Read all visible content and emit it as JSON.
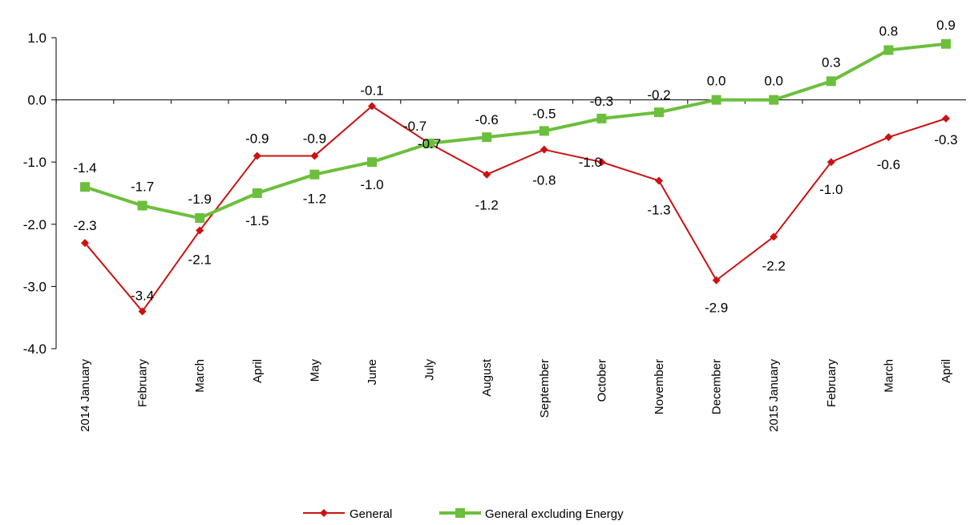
{
  "chart_data": {
    "type": "line",
    "title": "",
    "xlabel": "",
    "ylabel": "",
    "ylim": [
      -4.0,
      1.0
    ],
    "yticks": [
      "1.0",
      "0.0",
      "-1.0",
      "-2.0",
      "-3.0",
      "-4.0"
    ],
    "grid": false,
    "legend_position": "bottom-center",
    "categories": [
      "2014 January",
      "February",
      "March",
      "April",
      "May",
      "June",
      "July",
      "August",
      "September",
      "October",
      "November",
      "December",
      "2015 January",
      "February",
      "March",
      "April"
    ],
    "series": [
      {
        "name": "General",
        "color": "#cc1111",
        "marker": "diamond",
        "values": [
          -2.3,
          -3.4,
          -2.1,
          -0.9,
          -0.9,
          -0.1,
          -0.7,
          -1.2,
          -0.8,
          -1.0,
          -1.3,
          -2.9,
          -2.2,
          -1.0,
          -0.6,
          -0.3
        ],
        "labels": [
          "-2.3",
          "-3.4",
          "-2.1",
          "-0.9",
          "-0.9",
          "-0.1",
          "-0.7",
          "-1.2",
          "-0.8",
          "-1.0",
          "-1.3",
          "-2.9",
          "-2.2",
          "-1.0",
          "-0.6",
          "-0.3"
        ]
      },
      {
        "name": "General excluding Energy",
        "color": "#6cbf3c",
        "marker": "square",
        "values": [
          -1.4,
          -1.7,
          -1.9,
          -1.5,
          -1.2,
          -1.0,
          -0.7,
          -0.6,
          -0.5,
          -0.3,
          -0.2,
          0.0,
          0.0,
          0.3,
          0.8,
          0.9
        ],
        "labels": [
          "-1.4",
          "-1.7",
          "-1.9",
          "-1.5",
          "-1.2",
          "-1.0",
          "-0.7",
          "-0.6",
          "-0.5",
          "-0.3",
          "-0.2",
          "0.0",
          "0.0",
          "0.3",
          "0.8",
          "0.9"
        ]
      }
    ]
  }
}
